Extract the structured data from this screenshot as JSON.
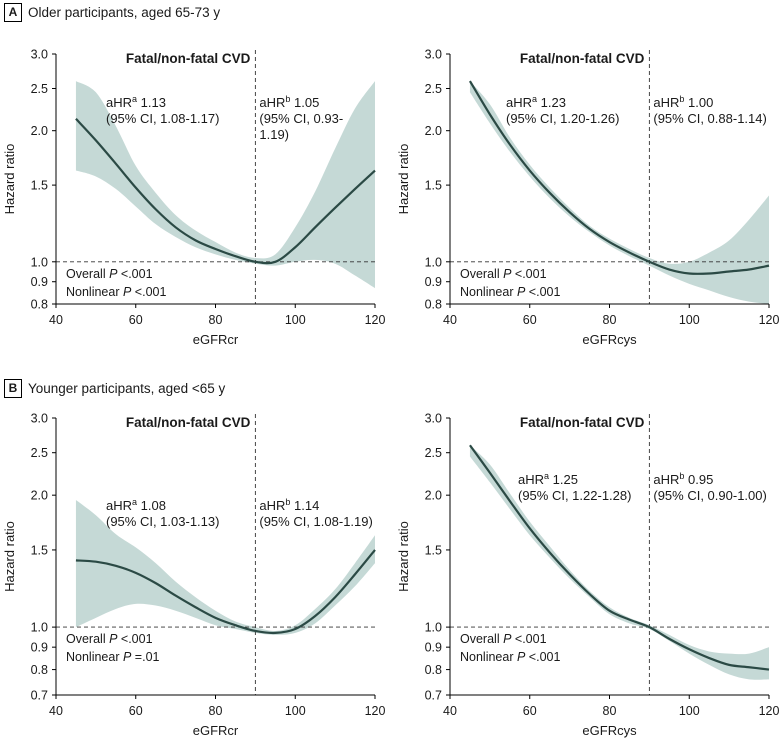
{
  "sections": [
    {
      "letter": "A",
      "title": "Older participants, aged 65-73 y"
    },
    {
      "letter": "B",
      "title": "Younger participants, aged <65 y"
    }
  ],
  "colors": {
    "line": "#2b4a45",
    "band": "#c5d9d6",
    "ref": "#333333"
  },
  "chart_data": [
    {
      "type": "line",
      "section": "A",
      "title": "Fatal/non-fatal CVD",
      "xlabel": "eGFRcr",
      "ylabel": "Hazard ratio",
      "xlim": [
        40,
        120
      ],
      "xticks": [
        40,
        60,
        80,
        100,
        120
      ],
      "ylim": [
        0.8,
        3.0
      ],
      "yticks": [
        "0.8",
        "0.9",
        "1.0",
        "1.5",
        "2.0",
        "2.5",
        "3.0"
      ],
      "yscale": "log",
      "reference_x": 90,
      "reference_y": 1.0,
      "annotation_left": {
        "prefix": "aHR",
        "sup": "a",
        "value": " 1.13",
        "ci": "(95% CI, 1.08-1.17)"
      },
      "annotation_right": {
        "prefix": "aHR",
        "sup": "b",
        "value": " 1.05",
        "ci": "(95% CI, 0.93-",
        "ci2": "1.19)"
      },
      "overall_p": {
        "label": "Overall ",
        "italic": "P",
        "value": " <.001"
      },
      "nonlinear_p": {
        "label": "Nonlinear ",
        "italic": "P",
        "value": " <.001"
      },
      "series": [
        {
          "name": "Hazard ratio",
          "x": [
            45,
            50,
            55,
            60,
            65,
            70,
            75,
            80,
            85,
            90,
            95,
            100,
            105,
            110,
            115,
            120
          ],
          "y": [
            2.13,
            1.9,
            1.68,
            1.48,
            1.32,
            1.2,
            1.12,
            1.07,
            1.03,
            1.0,
            1.0,
            1.08,
            1.2,
            1.33,
            1.47,
            1.62
          ],
          "lower": [
            1.62,
            1.57,
            1.47,
            1.34,
            1.22,
            1.14,
            1.08,
            1.04,
            1.01,
            0.99,
            0.98,
            1.0,
            1.01,
            0.99,
            0.93,
            0.87
          ],
          "upper": [
            2.6,
            2.45,
            2.05,
            1.66,
            1.44,
            1.28,
            1.18,
            1.11,
            1.05,
            1.02,
            1.04,
            1.2,
            1.45,
            1.82,
            2.25,
            2.6
          ]
        }
      ]
    },
    {
      "type": "line",
      "section": "A",
      "title": "Fatal/non-fatal CVD",
      "xlabel": "eGFRcys",
      "ylabel": "Hazard ratio",
      "xlim": [
        40,
        120
      ],
      "xticks": [
        40,
        60,
        80,
        100,
        120
      ],
      "ylim": [
        0.8,
        3.0
      ],
      "yticks": [
        "0.8",
        "0.9",
        "1.0",
        "1.5",
        "2.0",
        "2.5",
        "3.0"
      ],
      "yscale": "log",
      "reference_x": 90,
      "reference_y": 1.0,
      "annotation_left": {
        "prefix": "aHR",
        "sup": "a",
        "value": " 1.23",
        "ci": "(95% CI, 1.20-1.26)"
      },
      "annotation_right": {
        "prefix": "aHR",
        "sup": "b",
        "value": " 1.00",
        "ci": "(95% CI, 0.88-1.14)"
      },
      "overall_p": {
        "label": "Overall ",
        "italic": "P",
        "value": " <.001"
      },
      "nonlinear_p": {
        "label": "Nonlinear ",
        "italic": "P",
        "value": " <.001"
      },
      "series": [
        {
          "name": "Hazard ratio",
          "x": [
            45,
            50,
            55,
            60,
            65,
            70,
            75,
            80,
            85,
            90,
            95,
            100,
            105,
            110,
            115,
            120
          ],
          "y": [
            2.6,
            2.18,
            1.86,
            1.62,
            1.44,
            1.3,
            1.19,
            1.11,
            1.05,
            1.0,
            0.96,
            0.94,
            0.94,
            0.95,
            0.96,
            0.98
          ],
          "lower": [
            2.45,
            2.08,
            1.79,
            1.57,
            1.4,
            1.27,
            1.17,
            1.09,
            1.03,
            0.98,
            0.93,
            0.89,
            0.86,
            0.83,
            0.81,
            0.8
          ],
          "upper": [
            2.6,
            2.3,
            1.93,
            1.67,
            1.48,
            1.33,
            1.21,
            1.13,
            1.07,
            1.02,
            0.99,
            1.0,
            1.05,
            1.12,
            1.25,
            1.42
          ]
        }
      ]
    },
    {
      "type": "line",
      "section": "B",
      "title": "Fatal/non-fatal CVD",
      "xlabel": "eGFRcr",
      "ylabel": "Hazard ratio",
      "xlim": [
        40,
        120
      ],
      "xticks": [
        40,
        60,
        80,
        100,
        120
      ],
      "ylim": [
        0.7,
        3.0
      ],
      "yticks": [
        "0.7",
        "0.8",
        "0.9",
        "1.0",
        "1.5",
        "2.0",
        "2.5",
        "3.0"
      ],
      "yscale": "log",
      "reference_x": 90,
      "reference_y": 1.0,
      "annotation_left": {
        "prefix": "aHR",
        "sup": "a",
        "value": " 1.08",
        "ci": "(95% CI, 1.03-1.13)"
      },
      "annotation_right": {
        "prefix": "aHR",
        "sup": "b",
        "value": " 1.14",
        "ci": "(95% CI, 1.08-1.19)"
      },
      "overall_p": {
        "label": "Overall ",
        "italic": "P",
        "value": " <.001"
      },
      "nonlinear_p": {
        "label": "Nonlinear ",
        "italic": "P",
        "value": " =.01"
      },
      "series": [
        {
          "name": "Hazard ratio",
          "x": [
            45,
            50,
            55,
            60,
            65,
            70,
            75,
            80,
            85,
            90,
            95,
            100,
            105,
            110,
            115,
            120
          ],
          "y": [
            1.42,
            1.41,
            1.38,
            1.33,
            1.26,
            1.18,
            1.11,
            1.05,
            1.01,
            0.98,
            0.97,
            0.99,
            1.06,
            1.17,
            1.32,
            1.5
          ],
          "lower": [
            1.0,
            1.05,
            1.1,
            1.13,
            1.12,
            1.09,
            1.05,
            1.01,
            0.99,
            0.97,
            0.96,
            0.97,
            1.02,
            1.12,
            1.24,
            1.4
          ],
          "upper": [
            1.95,
            1.8,
            1.63,
            1.52,
            1.4,
            1.27,
            1.17,
            1.09,
            1.03,
            1.0,
            0.98,
            1.01,
            1.1,
            1.22,
            1.4,
            1.62
          ]
        }
      ]
    },
    {
      "type": "line",
      "section": "B",
      "title": "Fatal/non-fatal CVD",
      "xlabel": "eGFRcys",
      "ylabel": "Hazard ratio",
      "xlim": [
        40,
        120
      ],
      "xticks": [
        40,
        60,
        80,
        100,
        120
      ],
      "ylim": [
        0.7,
        3.0
      ],
      "yticks": [
        "0.7",
        "0.8",
        "0.9",
        "1.0",
        "1.5",
        "2.0",
        "2.5",
        "3.0"
      ],
      "yscale": "log",
      "reference_x": 90,
      "reference_y": 1.0,
      "annotation_left": {
        "prefix": "aHR",
        "sup": "a",
        "value": " 1.25",
        "ci": "(95% CI, 1.22-1.28)"
      },
      "annotation_right": {
        "prefix": "aHR",
        "sup": "b",
        "value": " 0.95",
        "ci": "(95% CI, 0.90-1.00)"
      },
      "overall_p": {
        "label": "Overall ",
        "italic": "P",
        "value": " <.001"
      },
      "nonlinear_p": {
        "label": "Nonlinear ",
        "italic": "P",
        "value": " <.001"
      },
      "series": [
        {
          "name": "Hazard ratio",
          "x": [
            45,
            50,
            55,
            60,
            65,
            70,
            75,
            80,
            85,
            90,
            95,
            100,
            105,
            110,
            115,
            120
          ],
          "y": [
            2.6,
            2.25,
            1.94,
            1.68,
            1.48,
            1.32,
            1.19,
            1.09,
            1.04,
            1.0,
            0.94,
            0.89,
            0.85,
            0.82,
            0.81,
            0.8
          ],
          "lower": [
            2.45,
            2.14,
            1.86,
            1.62,
            1.44,
            1.29,
            1.17,
            1.07,
            1.02,
            0.99,
            0.93,
            0.87,
            0.82,
            0.78,
            0.76,
            0.76
          ],
          "upper": [
            2.6,
            2.35,
            2.02,
            1.74,
            1.53,
            1.35,
            1.21,
            1.11,
            1.05,
            1.01,
            0.96,
            0.91,
            0.88,
            0.87,
            0.87,
            0.9
          ]
        }
      ]
    }
  ]
}
